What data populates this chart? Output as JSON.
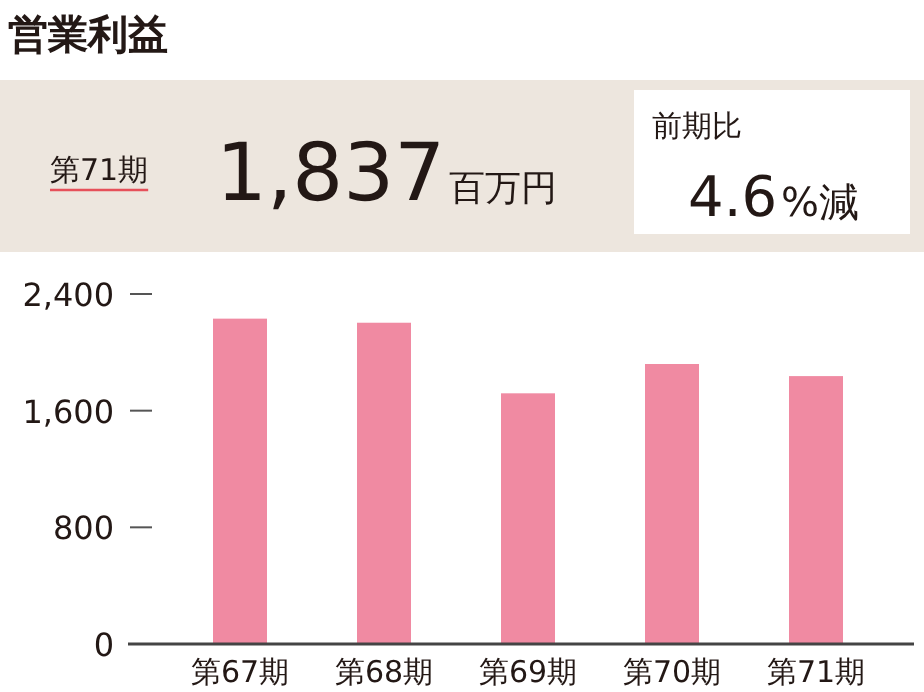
{
  "chart_data": {
    "type": "bar",
    "title": "営業利益",
    "annotations": [
      "第71期",
      "1,837",
      "百万円",
      "前期比",
      "4.6",
      "%減"
    ],
    "categories": [
      "第67期",
      "第68期",
      "第69期",
      "第70期",
      "第71期"
    ],
    "values": [
      2231,
      2203,
      1719,
      1920,
      1837
    ],
    "color": "#f08aa2",
    "ylim": [
      0,
      2400
    ],
    "yticks": [
      {
        "value": 0,
        "label": "0"
      },
      {
        "value": 800,
        "label": "800"
      },
      {
        "value": 1600,
        "label": "1,600"
      },
      {
        "value": 2400,
        "label": "2,400"
      }
    ],
    "grid": false
  }
}
